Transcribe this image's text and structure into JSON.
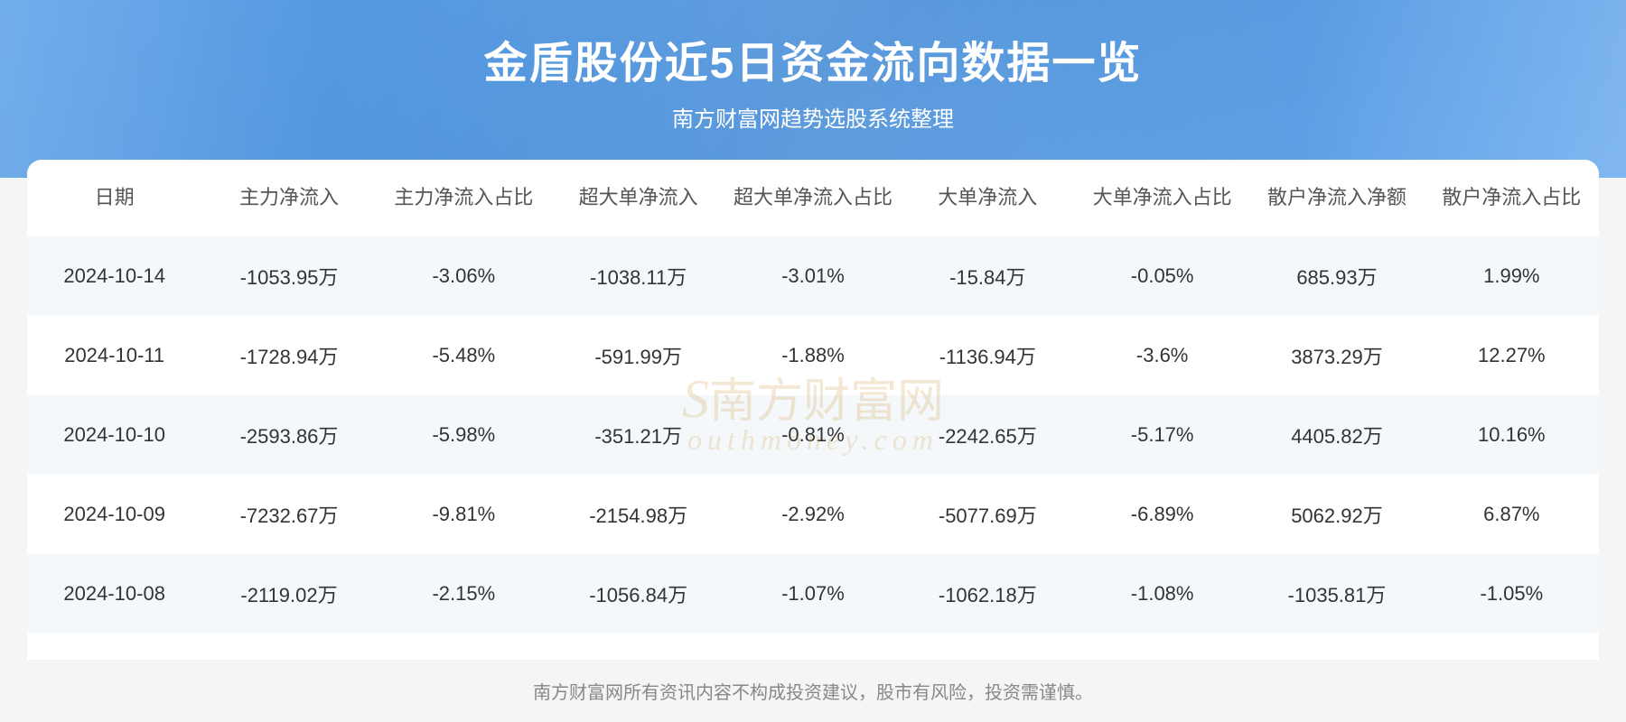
{
  "header": {
    "title": "金盾股份近5日资金流向数据一览",
    "subtitle": "南方财富网趋势选股系统整理"
  },
  "watermark": {
    "line1_a": "S",
    "line1_b": "南方财富网",
    "line2": "outhmoney.com"
  },
  "table": {
    "columns": [
      "日期",
      "主力净流入",
      "主力净流入占比",
      "超大单净流入",
      "超大单净流入占比",
      "大单净流入",
      "大单净流入占比",
      "散户净流入净额",
      "散户净流入占比"
    ],
    "rows": [
      [
        "2024-10-14",
        "-1053.95万",
        "-3.06%",
        "-1038.11万",
        "-3.01%",
        "-15.84万",
        "-0.05%",
        "685.93万",
        "1.99%"
      ],
      [
        "2024-10-11",
        "-1728.94万",
        "-5.48%",
        "-591.99万",
        "-1.88%",
        "-1136.94万",
        "-3.6%",
        "3873.29万",
        "12.27%"
      ],
      [
        "2024-10-10",
        "-2593.86万",
        "-5.98%",
        "-351.21万",
        "-0.81%",
        "-2242.65万",
        "-5.17%",
        "4405.82万",
        "10.16%"
      ],
      [
        "2024-10-09",
        "-7232.67万",
        "-9.81%",
        "-2154.98万",
        "-2.92%",
        "-5077.69万",
        "-6.89%",
        "5062.92万",
        "6.87%"
      ],
      [
        "2024-10-08",
        "-2119.02万",
        "-2.15%",
        "-1056.84万",
        "-1.07%",
        "-1062.18万",
        "-1.08%",
        "-1035.81万",
        "-1.05%"
      ]
    ]
  },
  "footer": {
    "disclaimer": "南方财富网所有资讯内容不构成投资建议，股市有风险，投资需谨慎。"
  },
  "style": {
    "header_gradient_start": "#5a9fe8",
    "header_gradient_end": "#6babef",
    "title_color": "#ffffff",
    "title_fontsize": 48,
    "subtitle_fontsize": 24,
    "row_odd_bg": "#f4f8fb",
    "row_even_bg": "#ffffff",
    "cell_fontsize": 22,
    "text_color": "#333333",
    "header_text_color": "#555555",
    "footer_color": "#888888",
    "watermark_color": "rgba(210,160,80,0.25)"
  }
}
